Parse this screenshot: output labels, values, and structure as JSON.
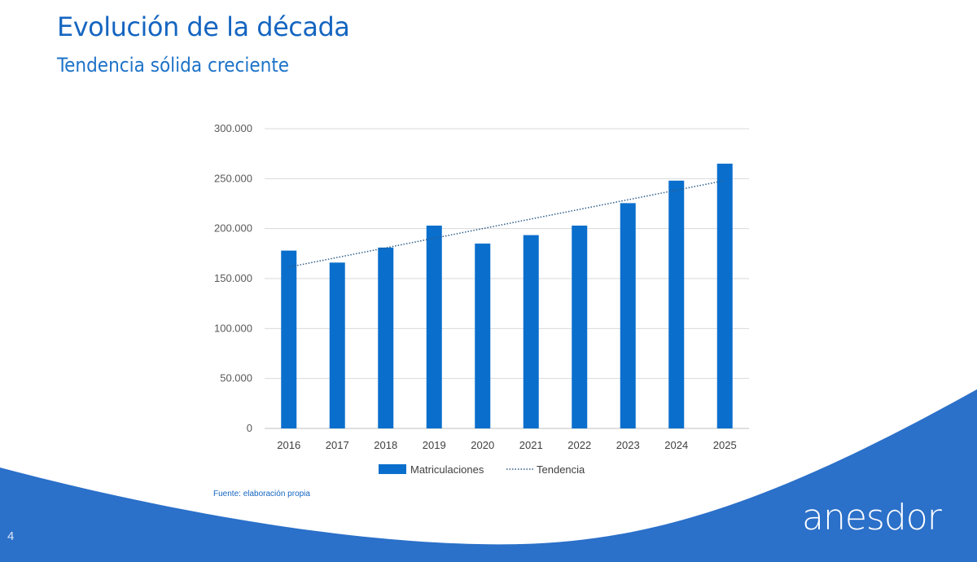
{
  "slide": {
    "title": "Evolución de la década",
    "subtitle": "Tendencia sólida creciente",
    "source": "Fuente: elaboración propia",
    "page_number": "4",
    "logo_text": "anesdor",
    "colors": {
      "accent": "#0a6fcc",
      "background_wave": "#2b70c9",
      "title": "#1565c0"
    }
  },
  "chart_data": {
    "type": "bar",
    "categories": [
      "2016",
      "2017",
      "2018",
      "2019",
      "2020",
      "2021",
      "2022",
      "2023",
      "2024",
      "2025"
    ],
    "series": [
      {
        "name": "Matriculaciones",
        "values": [
          178000,
          166000,
          181000,
          203000,
          185000,
          193500,
          203000,
          225500,
          248000,
          265000
        ],
        "color": "#0a6fcc"
      }
    ],
    "trendline": {
      "name": "Tendencia",
      "type": "linear",
      "style": "dotted",
      "color": "#2e5d8a"
    },
    "ylim": [
      0,
      300000
    ],
    "yticks": [
      0,
      50000,
      100000,
      150000,
      200000,
      250000,
      300000
    ],
    "ytick_labels": [
      "0",
      "50.000",
      "100.000",
      "150.000",
      "200.000",
      "250.000",
      "300.000"
    ],
    "grid": true,
    "legend": "bottom",
    "xlabel": "",
    "ylabel": "",
    "title": ""
  }
}
